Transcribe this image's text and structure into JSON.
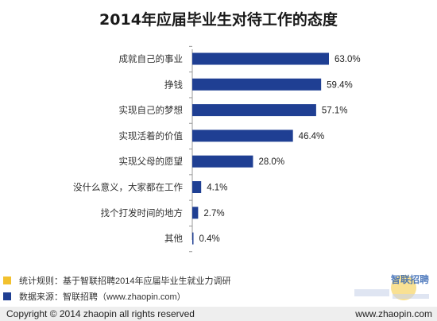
{
  "title": "2014年应届毕业生对待工作的态度",
  "colors": {
    "bar": "#1f3f93",
    "axis": "#999999",
    "note1": "#f2c12e",
    "note2": "#1f3f93"
  },
  "chart_data": {
    "type": "bar",
    "orientation": "horizontal",
    "categories": [
      "成就自己的事业",
      "挣钱",
      "实现自己的梦想",
      "实现活着的价值",
      "实现父母的愿望",
      "没什么意义，大家都在工作",
      "找个打发时间的地方",
      "其他"
    ],
    "values": [
      63.0,
      59.4,
      57.1,
      46.4,
      28.0,
      4.1,
      2.7,
      0.4
    ],
    "value_labels": [
      "63.0%",
      "59.4%",
      "57.1%",
      "46.4%",
      "28.0%",
      "4.1%",
      "2.7%",
      "0.4%"
    ],
    "title": "2014年应届毕业生对待工作的态度",
    "xlim": [
      0,
      70
    ],
    "grid": false
  },
  "notes": [
    {
      "text": "统计规则：基于智联招聘2014年应届毕业生就业力调研"
    },
    {
      "text": "数据来源：智联招聘（www.zhaopin.com）"
    }
  ],
  "watermark": {
    "logo_text": "智联招聘",
    "icon": "zhaopin-logo-icon"
  },
  "footer": {
    "copyright": "Copyright  ©  2014 zhaopin all rights reserved",
    "site": "www.zhaopin.com"
  }
}
